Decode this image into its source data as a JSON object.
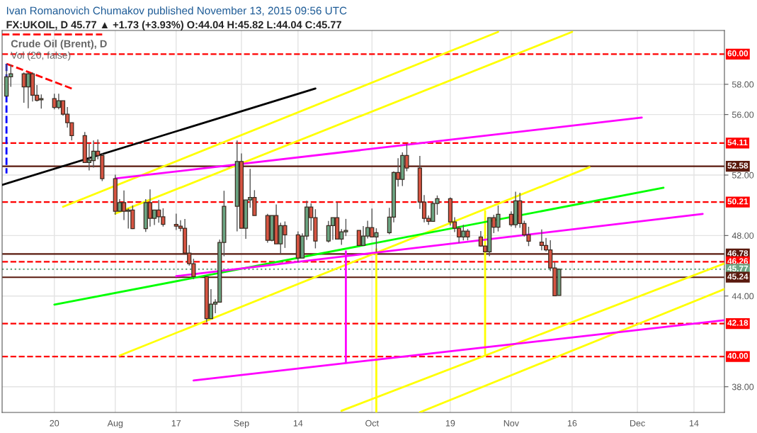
{
  "chart_data": {
    "type": "candlestick",
    "title": "Ivan Romanovich Chumakov published November 13, 2015 09:56 UTC",
    "subtitle": "FX:UKOIL, D 45.77 ▲ +1.73 (+3.93%) O:44.04 H:45.82 L:44.04 C:45.77",
    "annotations": [
      "Crude Oil (Brent), D",
      "Vol (20, false)"
    ],
    "x": [
      "2015-07-09",
      "2015-07-10",
      "2015-07-13",
      "2015-07-14",
      "2015-07-15",
      "2015-07-16",
      "2015-07-17",
      "2015-07-20",
      "2015-07-21",
      "2015-07-22",
      "2015-07-23",
      "2015-07-24",
      "2015-07-27",
      "2015-07-28",
      "2015-07-29",
      "2015-07-30",
      "2015-07-31",
      "2015-08-03",
      "2015-08-04",
      "2015-08-05",
      "2015-08-06",
      "2015-08-07",
      "2015-08-10",
      "2015-08-11",
      "2015-08-12",
      "2015-08-13",
      "2015-08-14",
      "2015-08-17",
      "2015-08-18",
      "2015-08-19",
      "2015-08-20",
      "2015-08-21",
      "2015-08-24",
      "2015-08-25",
      "2015-08-26",
      "2015-08-27",
      "2015-08-28",
      "2015-08-31",
      "2015-09-01",
      "2015-09-02",
      "2015-09-03",
      "2015-09-04",
      "2015-09-07",
      "2015-09-08",
      "2015-09-09",
      "2015-09-10",
      "2015-09-11",
      "2015-09-14",
      "2015-09-15",
      "2015-09-16",
      "2015-09-17",
      "2015-09-18",
      "2015-09-21",
      "2015-09-22",
      "2015-09-23",
      "2015-09-24",
      "2015-09-25",
      "2015-09-28",
      "2015-09-29",
      "2015-09-30",
      "2015-10-01",
      "2015-10-02",
      "2015-10-05",
      "2015-10-06",
      "2015-10-07",
      "2015-10-08",
      "2015-10-09",
      "2015-10-12",
      "2015-10-13",
      "2015-10-14",
      "2015-10-15",
      "2015-10-16",
      "2015-10-19",
      "2015-10-20",
      "2015-10-21",
      "2015-10-22",
      "2015-10-23",
      "2015-10-26",
      "2015-10-27",
      "2015-10-28",
      "2015-10-29",
      "2015-10-30",
      "2015-11-02",
      "2015-11-03",
      "2015-11-04",
      "2015-11-05",
      "2015-11-06",
      "2015-11-09",
      "2015-11-10",
      "2015-11-11",
      "2015-11-12",
      "2015-11-13"
    ],
    "ohlc": [
      [
        57.22,
        59.36,
        57.22,
        58.5
      ],
      [
        58.5,
        59.3,
        57.83,
        58.69
      ],
      [
        58.69,
        58.78,
        56.78,
        57.83
      ],
      [
        57.83,
        58.78,
        56.42,
        58.69
      ],
      [
        58.69,
        58.78,
        56.86,
        57.28
      ],
      [
        57.28,
        57.95,
        56.86,
        56.94
      ],
      [
        56.97,
        57.33,
        56.39,
        57.05
      ],
      [
        57.05,
        57.38,
        56.35,
        56.47
      ],
      [
        56.47,
        57.38,
        56.35,
        56.91
      ],
      [
        56.91,
        56.91,
        55.93,
        56.02
      ],
      [
        56.02,
        56.5,
        55.14,
        55.46
      ],
      [
        55.46,
        55.46,
        54.29,
        54.61
      ],
      [
        54.61,
        54.85,
        52.83,
        52.83
      ],
      [
        52.83,
        54.08,
        52.3,
        52.99
      ],
      [
        52.96,
        54.29,
        52.49,
        53.58
      ],
      [
        53.58,
        54.35,
        53.04,
        53.3
      ],
      [
        53.3,
        53.43,
        51.6,
        51.76
      ],
      [
        51.76,
        52.02,
        49.37,
        49.6
      ],
      [
        49.6,
        50.41,
        49.6,
        50.18
      ],
      [
        50.18,
        50.98,
        49.02,
        49.6
      ],
      [
        49.6,
        49.8,
        48.46,
        49.69
      ],
      [
        49.69,
        49.99,
        48.43,
        48.46
      ],
      [
        48.46,
        50.41,
        48.24,
        50.18
      ],
      [
        50.18,
        51.05,
        48.59,
        49.13
      ],
      [
        49.13,
        49.69,
        48.7,
        49.69
      ],
      [
        49.69,
        50.35,
        48.85,
        49.24
      ],
      [
        49.24,
        49.8,
        48.59,
        48.74
      ],
      [
        48.74,
        49.45,
        48.37,
        48.62
      ],
      [
        48.62,
        49.01,
        48.27,
        48.48
      ],
      [
        48.48,
        49.09,
        46.84,
        46.84
      ],
      [
        46.84,
        47.37,
        46.01,
        46.14
      ],
      [
        46.14,
        46.46,
        45.12,
        45.28
      ],
      [
        45.28,
        45.28,
        42.26,
        42.5
      ],
      [
        42.5,
        44.45,
        42.5,
        43.47
      ],
      [
        43.47,
        43.79,
        42.86,
        43.59
      ],
      [
        43.59,
        47.73,
        43.59,
        47.54
      ],
      [
        47.54,
        50.96,
        46.63,
        49.93
      ],
      [
        49.93,
        54.29,
        48.27,
        52.9
      ],
      [
        52.9,
        53.43,
        48.48,
        48.48
      ],
      [
        48.48,
        50.35,
        47.78,
        50.35
      ],
      [
        50.35,
        52.41,
        49.83,
        50.52
      ],
      [
        50.52,
        51.0,
        49.32,
        49.32
      ],
      [
        49.32,
        49.43,
        47.52,
        47.68
      ],
      [
        47.68,
        49.32,
        47.62,
        49.32
      ],
      [
        49.32,
        50.05,
        47.45,
        47.45
      ],
      [
        47.45,
        48.85,
        46.79,
        48.66
      ],
      [
        48.66,
        48.93,
        47.18,
        48.05
      ],
      [
        48.05,
        48.27,
        46.24,
        46.51
      ],
      [
        46.51,
        48.15,
        46.51,
        47.96
      ],
      [
        47.96,
        50.3,
        47.71,
        49.88
      ],
      [
        49.88,
        50.12,
        48.32,
        49.18
      ],
      [
        49.18,
        49.74,
        47.15,
        47.63
      ],
      [
        47.63,
        48.96,
        47.54,
        48.66
      ],
      [
        48.66,
        49.18,
        47.71,
        49.18
      ],
      [
        49.18,
        50.21,
        47.77,
        47.77
      ],
      [
        47.77,
        48.43,
        47.38,
        48.24
      ],
      [
        48.24,
        49.1,
        47.96,
        48.34
      ],
      [
        48.34,
        48.34,
        47.34,
        47.34
      ],
      [
        47.34,
        48.62,
        47.34,
        47.96
      ],
      [
        47.96,
        48.98,
        47.8,
        48.52
      ],
      [
        48.52,
        49.79,
        47.91,
        47.91
      ],
      [
        47.91,
        48.48,
        46.91,
        48.19
      ],
      [
        48.19,
        49.83,
        48.09,
        49.22
      ],
      [
        49.22,
        52.24,
        48.87,
        52.17
      ],
      [
        52.17,
        53.11,
        51.24,
        51.71
      ],
      [
        51.71,
        53.5,
        51.27,
        53.3
      ],
      [
        53.3,
        54.05,
        52.25,
        52.46
      ],
      [
        52.46,
        53.27,
        49.76,
        50.21
      ],
      [
        50.21,
        50.68,
        48.87,
        49.13
      ],
      [
        49.13,
        49.33,
        48.71,
        48.94
      ],
      [
        48.94,
        50.27,
        48.94,
        50.12
      ],
      [
        50.12,
        50.65,
        49.37,
        50.44
      ],
      [
        50.44,
        50.52,
        48.66,
        48.9
      ],
      [
        48.9,
        49.21,
        48.23,
        48.48
      ],
      [
        48.48,
        48.62,
        47.52,
        47.91
      ],
      [
        47.91,
        48.71,
        47.68,
        48.29
      ],
      [
        48.29,
        48.43,
        47.68,
        47.91
      ],
      [
        47.91,
        48.3,
        47.26,
        47.31
      ],
      [
        47.31,
        47.31,
        46.92,
        46.92
      ],
      [
        46.92,
        49.18,
        46.63,
        49.18
      ],
      [
        49.18,
        49.37,
        48.16,
        48.55
      ],
      [
        48.55,
        49.99,
        48.27,
        49.41
      ],
      [
        49.41,
        49.6,
        48.59,
        48.71
      ],
      [
        48.71,
        50.9,
        48.51,
        50.3
      ],
      [
        50.3,
        50.83,
        48.51,
        48.79
      ],
      [
        48.79,
        48.98,
        47.93,
        48.04
      ],
      [
        48.04,
        48.58,
        47.3,
        47.62
      ],
      [
        47.57,
        48.4,
        47.02,
        47.34
      ],
      [
        47.34,
        47.84,
        46.95,
        47.05
      ],
      [
        47.05,
        47.69,
        45.65,
        45.85
      ],
      [
        45.85,
        46.24,
        44.01,
        44.01
      ],
      [
        44.04,
        45.82,
        44.04,
        45.77
      ]
    ],
    "colors": [
      "#6ba583",
      "#6ba583",
      "#d75442",
      "#6ba583",
      "#d75442",
      "#d75442",
      "#6ba583",
      "#d75442",
      "#6ba583",
      "#d75442",
      "#d75442",
      "#d75442",
      "#d75442",
      "#6ba583",
      "#6ba583",
      "#d75442",
      "#d75442",
      "#d75442",
      "#6ba583",
      "#d75442",
      "#6ba583",
      "#d75442",
      "#6ba583",
      "#d75442",
      "#6ba583",
      "#d75442",
      "#d75442",
      "#d75442",
      "#d75442",
      "#d75442",
      "#d75442",
      "#d75442",
      "#d75442",
      "#6ba583",
      "#6ba583",
      "#6ba583",
      "#6ba583",
      "#6ba583",
      "#d75442",
      "#6ba583",
      "#6ba583",
      "#d75442",
      "#d75442",
      "#6ba583",
      "#d75442",
      "#6ba583",
      "#d75442",
      "#d75442",
      "#6ba583",
      "#6ba583",
      "#d75442",
      "#d75442",
      "#6ba583",
      "#6ba583",
      "#d75442",
      "#6ba583",
      "#6ba583",
      "#d75442",
      "#6ba583",
      "#6ba583",
      "#d75442",
      "#6ba583",
      "#6ba583",
      "#6ba583",
      "#d75442",
      "#6ba583",
      "#d75442",
      "#d75442",
      "#d75442",
      "#d75442",
      "#6ba583",
      "#6ba583",
      "#d75442",
      "#d75442",
      "#d75442",
      "#6ba583",
      "#d75442",
      "#d75442",
      "#d75442",
      "#6ba583",
      "#d75442",
      "#6ba583",
      "#d75442",
      "#6ba583",
      "#d75442",
      "#d75442",
      "#d75442",
      "#d75442",
      "#d75442",
      "#d75442",
      "#d75442",
      "#6ba583"
    ],
    "series": [
      {
        "type": "line",
        "color": "#000000",
        "x": [
          "2015-07-08",
          "2015-09-18"
        ],
        "values": [
          51.35,
          57.72
        ]
      },
      {
        "type": "line",
        "color": "#ffff00",
        "x": [
          "2015-07-22",
          "2015-10-30"
        ],
        "values": [
          49.9,
          61.47
        ]
      },
      {
        "type": "line",
        "color": "#ffff00",
        "x": [
          "2015-08-03",
          "2015-11-16"
        ],
        "values": [
          49.45,
          61.47
        ]
      },
      {
        "type": "line",
        "color": "#ffff00",
        "x": [
          "2015-08-04",
          "2015-11-20"
        ],
        "values": [
          40.06,
          52.52
        ]
      },
      {
        "type": "line",
        "color": "#ffff00",
        "x": [
          "2015-09-24",
          "2015-12-21"
        ],
        "values": [
          36.41,
          46.15
        ]
      },
      {
        "type": "line",
        "color": "#ffff00",
        "x": [
          "2015-10-12",
          "2015-12-21"
        ],
        "values": [
          36.31,
          44.46
        ]
      },
      {
        "type": "line",
        "color": "#ffff00",
        "x": [
          "2015-10-02",
          "2015-10-02"
        ],
        "values": [
          47.09,
          36.31
        ]
      },
      {
        "type": "line",
        "color": "#ffff00",
        "x": [
          "2015-10-27",
          "2015-10-27"
        ],
        "values": [
          49.62,
          40.15
        ]
      },
      {
        "type": "line",
        "color": "#00ff00",
        "x": [
          "2015-07-20",
          "2015-12-07"
        ],
        "values": [
          43.43,
          51.16
        ]
      },
      {
        "type": "line",
        "color": "#ff00ff",
        "x": [
          "2015-08-03",
          "2015-12-02"
        ],
        "values": [
          51.77,
          55.8
        ]
      },
      {
        "type": "line",
        "color": "#ff00ff",
        "x": [
          "2015-08-17",
          "2015-12-16"
        ],
        "values": [
          45.31,
          49.43
        ]
      },
      {
        "type": "line",
        "color": "#ff00ff",
        "x": [
          "2015-08-21",
          "2015-12-21"
        ],
        "values": [
          38.42,
          42.4
        ]
      },
      {
        "type": "line",
        "color": "#ff00ff",
        "x": [
          "2015-09-25",
          "2015-09-25"
        ],
        "values": [
          46.95,
          39.59
        ]
      },
      {
        "type": "line",
        "color": "#ff0000",
        "line_style": "dashed",
        "x": [
          "2015-07-08",
          "2015-07-31"
        ],
        "values": [
          61.3,
          61.3
        ]
      },
      {
        "type": "line",
        "color": "#ff0000",
        "line_style": "dashed",
        "x": [
          "2015-07-09",
          "2015-07-24"
        ],
        "values": [
          59.36,
          57.72
        ]
      },
      {
        "type": "line",
        "color": "#0000ff",
        "line_style": "dashed",
        "x": [
          "2015-07-09",
          "2015-07-09"
        ],
        "values": [
          59.36,
          52.1
        ]
      }
    ],
    "ref_lines": [
      {
        "axis": "y",
        "value": 60.0,
        "label": "60.00",
        "color": "#ff0000",
        "line_style": "dashed"
      },
      {
        "axis": "y",
        "value": 54.11,
        "label": "54.11",
        "color": "#ff0000",
        "line_style": "dashed"
      },
      {
        "axis": "y",
        "value": 52.58,
        "label": "52.58",
        "color": "#5a1a0e",
        "line_style": "solid"
      },
      {
        "axis": "y",
        "value": 50.21,
        "label": "50.21",
        "color": "#ff0000",
        "line_style": "dashed"
      },
      {
        "axis": "y",
        "value": 46.78,
        "label": "46.78",
        "color": "#5a1a0e",
        "line_style": "solid"
      },
      {
        "axis": "y",
        "value": 46.26,
        "label": "46.26",
        "color": "#ff0000",
        "line_style": "dashed"
      },
      {
        "axis": "y",
        "value": 45.77,
        "label": "45.77",
        "color": "#6ba583",
        "line_style": "dotted"
      },
      {
        "axis": "y",
        "value": 45.24,
        "label": "45.24",
        "color": "#5a1a0e",
        "line_style": "solid"
      },
      {
        "axis": "y",
        "value": 42.18,
        "label": "42.18",
        "color": "#ff0000",
        "line_style": "dashed"
      },
      {
        "axis": "y",
        "value": 40.0,
        "label": "40.00",
        "color": "#ff0000",
        "line_style": "dashed"
      }
    ],
    "xlim": [
      "2015-07-08",
      "2015-12-21"
    ],
    "xticks": [
      {
        "value": "2015-07-20",
        "label": "20"
      },
      {
        "value": "2015-08-03",
        "label": "Aug"
      },
      {
        "value": "2015-08-17",
        "label": "17"
      },
      {
        "value": "2015-09-01",
        "label": "Sep"
      },
      {
        "value": "2015-09-14",
        "label": "14"
      },
      {
        "value": "2015-10-01",
        "label": "Oct"
      },
      {
        "value": "2015-10-19",
        "label": "19"
      },
      {
        "value": "2015-11-02",
        "label": "Nov"
      },
      {
        "value": "2015-11-16",
        "label": "16"
      },
      {
        "value": "2015-12-01",
        "label": "Dec"
      },
      {
        "value": "2015-12-14",
        "label": "14"
      }
    ],
    "ylim": [
      36.3,
      61.56
    ],
    "yticks": [
      {
        "value": 38,
        "label": "38.00"
      },
      {
        "value": 44,
        "label": "44.00"
      },
      {
        "value": 48,
        "label": "48.00"
      },
      {
        "value": 52,
        "label": "52.00"
      },
      {
        "value": 56,
        "label": "56.00"
      },
      {
        "value": 58,
        "label": "58.00"
      }
    ],
    "grid": true
  }
}
